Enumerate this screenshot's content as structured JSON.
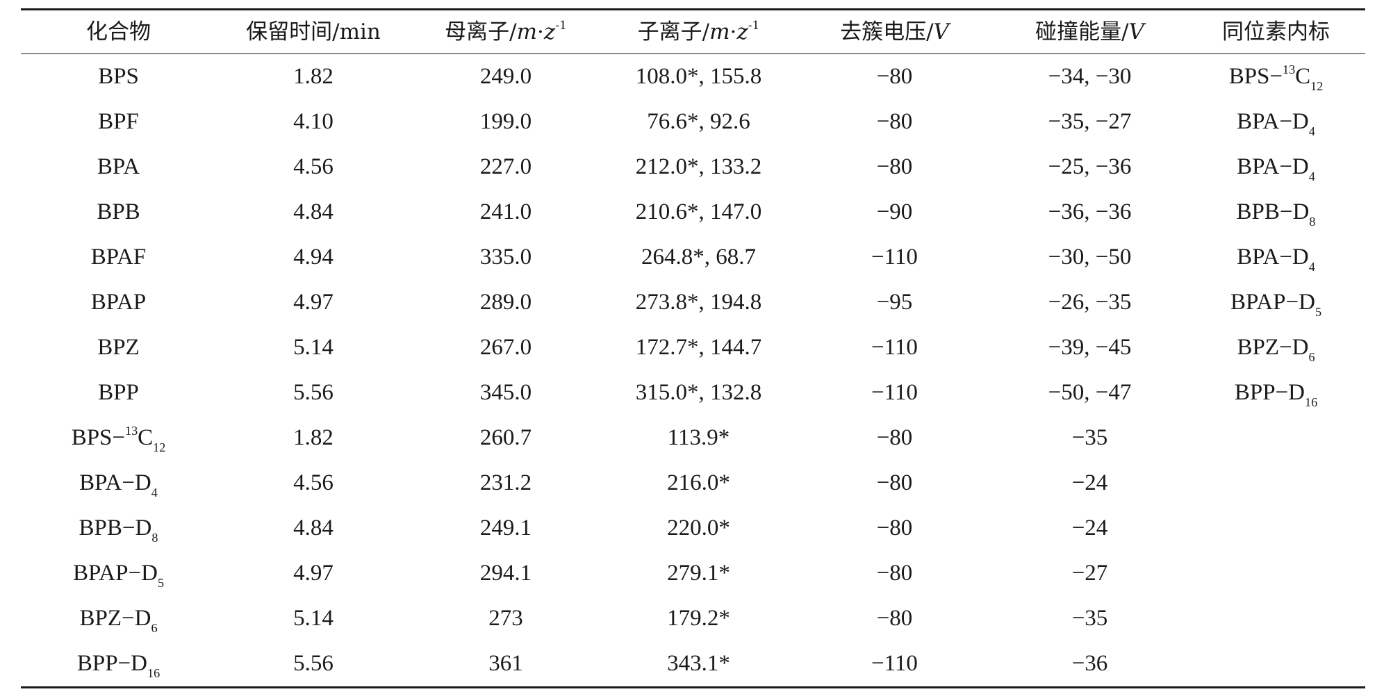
{
  "header": {
    "compound": "化合物",
    "retention_time": "保留时间/min",
    "precursor_ion": {
      "prefix": "母离子/",
      "m": "m",
      "dot": "·",
      "z": "z",
      "exp": "-1"
    },
    "product_ion": {
      "prefix": "子离子/",
      "m": "m",
      "dot": "·",
      "z": "z",
      "exp": "-1"
    },
    "declustering_potential": {
      "prefix": "去簇电压/",
      "unit": "V"
    },
    "collision_energy": {
      "prefix": "碰撞能量/",
      "unit": "V"
    },
    "internal_standard": "同位素内标"
  },
  "rows": [
    {
      "compound": {
        "base": "BPS",
        "sup": "",
        "sub": "",
        "tail": ""
      },
      "rt": "1.82",
      "precursor": "249.0",
      "product": "108.0*, 155.8",
      "dp": "−80",
      "ce": "−34, −30",
      "is": {
        "base": "BPS−",
        "sup": "13",
        "tail": "C",
        "sub": "12"
      }
    },
    {
      "compound": {
        "base": "BPF",
        "sup": "",
        "sub": "",
        "tail": ""
      },
      "rt": "4.10",
      "precursor": "199.0",
      "product": "76.6*, 92.6",
      "dp": "−80",
      "ce": "−35, −27",
      "is": {
        "base": "BPA−D",
        "sup": "",
        "tail": "",
        "sub": "4"
      }
    },
    {
      "compound": {
        "base": "BPA",
        "sup": "",
        "sub": "",
        "tail": ""
      },
      "rt": "4.56",
      "precursor": "227.0",
      "product": "212.0*, 133.2",
      "dp": "−80",
      "ce": "−25, −36",
      "is": {
        "base": "BPA−D",
        "sup": "",
        "tail": "",
        "sub": "4"
      }
    },
    {
      "compound": {
        "base": "BPB",
        "sup": "",
        "sub": "",
        "tail": ""
      },
      "rt": "4.84",
      "precursor": "241.0",
      "product": "210.6*, 147.0",
      "dp": "−90",
      "ce": "−36, −36",
      "is": {
        "base": "BPB−D",
        "sup": "",
        "tail": "",
        "sub": "8"
      }
    },
    {
      "compound": {
        "base": "BPAF",
        "sup": "",
        "sub": "",
        "tail": ""
      },
      "rt": "4.94",
      "precursor": "335.0",
      "product": "264.8*, 68.7",
      "dp": "−110",
      "ce": "−30, −50",
      "is": {
        "base": "BPA−D",
        "sup": "",
        "tail": "",
        "sub": "4"
      }
    },
    {
      "compound": {
        "base": "BPAP",
        "sup": "",
        "sub": "",
        "tail": ""
      },
      "rt": "4.97",
      "precursor": "289.0",
      "product": "273.8*, 194.8",
      "dp": "−95",
      "ce": "−26, −35",
      "is": {
        "base": "BPAP−D",
        "sup": "",
        "tail": "",
        "sub": "5"
      }
    },
    {
      "compound": {
        "base": "BPZ",
        "sup": "",
        "sub": "",
        "tail": ""
      },
      "rt": "5.14",
      "precursor": "267.0",
      "product": "172.7*, 144.7",
      "dp": "−110",
      "ce": "−39, −45",
      "is": {
        "base": "BPZ−D",
        "sup": "",
        "tail": "",
        "sub": "6"
      }
    },
    {
      "compound": {
        "base": "BPP",
        "sup": "",
        "sub": "",
        "tail": ""
      },
      "rt": "5.56",
      "precursor": "345.0",
      "product": "315.0*, 132.8",
      "dp": "−110",
      "ce": "−50, −47",
      "is": {
        "base": "BPP−D",
        "sup": "",
        "tail": "",
        "sub": "16"
      }
    },
    {
      "compound": {
        "base": "BPS−",
        "sup": "13",
        "tail": "C",
        "sub": "12"
      },
      "rt": "1.82",
      "precursor": "260.7",
      "product": "113.9*",
      "dp": "−80",
      "ce": "−35",
      "is": {
        "base": "",
        "sup": "",
        "tail": "",
        "sub": ""
      }
    },
    {
      "compound": {
        "base": "BPA−D",
        "sup": "",
        "tail": "",
        "sub": "4"
      },
      "rt": "4.56",
      "precursor": "231.2",
      "product": "216.0*",
      "dp": "−80",
      "ce": "−24",
      "is": {
        "base": "",
        "sup": "",
        "tail": "",
        "sub": ""
      }
    },
    {
      "compound": {
        "base": "BPB−D",
        "sup": "",
        "tail": "",
        "sub": "8"
      },
      "rt": "4.84",
      "precursor": "249.1",
      "product": "220.0*",
      "dp": "−80",
      "ce": "−24",
      "is": {
        "base": "",
        "sup": "",
        "tail": "",
        "sub": ""
      }
    },
    {
      "compound": {
        "base": "BPAP−D",
        "sup": "",
        "tail": "",
        "sub": "5"
      },
      "rt": "4.97",
      "precursor": "294.1",
      "product": "279.1*",
      "dp": "−80",
      "ce": "−27",
      "is": {
        "base": "",
        "sup": "",
        "tail": "",
        "sub": ""
      }
    },
    {
      "compound": {
        "base": "BPZ−D",
        "sup": "",
        "tail": "",
        "sub": "6"
      },
      "rt": "5.14",
      "precursor": "273",
      "product": "179.2*",
      "dp": "−80",
      "ce": "−35",
      "is": {
        "base": "",
        "sup": "",
        "tail": "",
        "sub": ""
      }
    },
    {
      "compound": {
        "base": "BPP−D",
        "sup": "",
        "tail": "",
        "sub": "16"
      },
      "rt": "5.56",
      "precursor": "361",
      "product": "343.1*",
      "dp": "−110",
      "ce": "−36",
      "is": {
        "base": "",
        "sup": "",
        "tail": "",
        "sub": ""
      }
    }
  ]
}
